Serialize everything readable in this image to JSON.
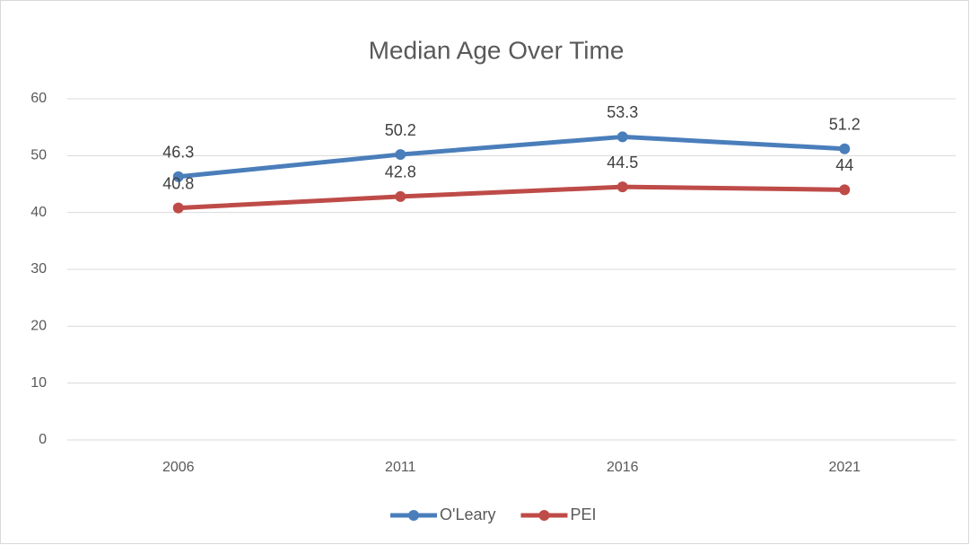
{
  "chart_data": {
    "type": "line",
    "title": "Median Age Over Time",
    "categories": [
      "2006",
      "2011",
      "2016",
      "2021"
    ],
    "series": [
      {
        "name": "O'Leary",
        "color": "#4a7ebb",
        "values": [
          46.3,
          50.2,
          53.3,
          51.2
        ]
      },
      {
        "name": "PEI",
        "color": "#be4b48",
        "values": [
          40.8,
          42.8,
          44.5,
          44
        ]
      }
    ],
    "ylim": [
      0,
      60
    ],
    "yticks": [
      0,
      10,
      20,
      30,
      40,
      50,
      60
    ],
    "grid": true,
    "legend": "bottom"
  }
}
